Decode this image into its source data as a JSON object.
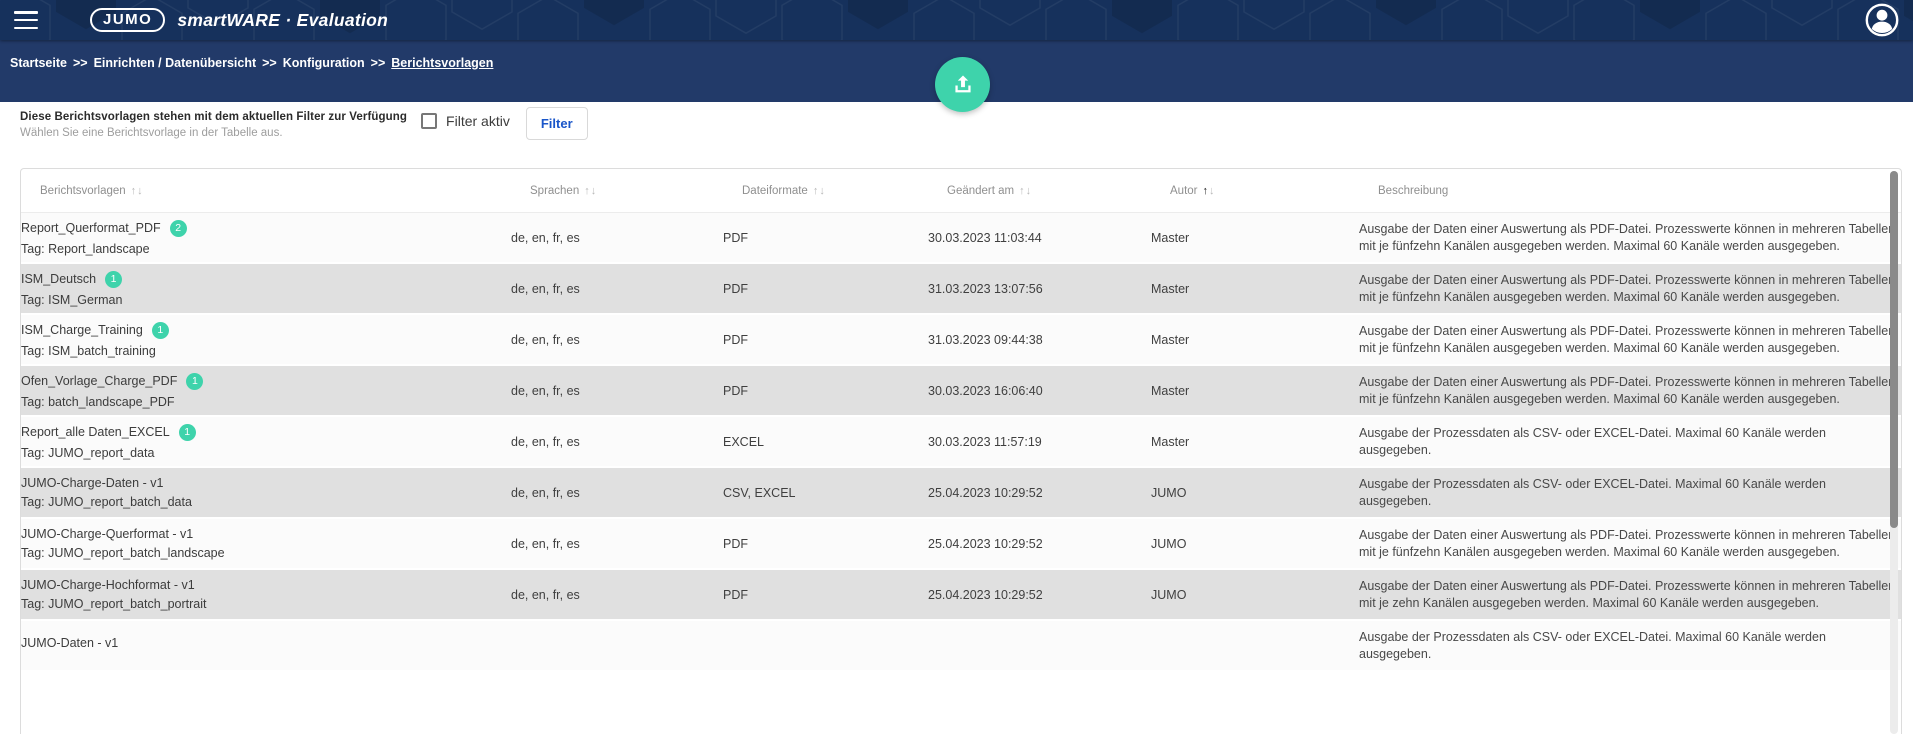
{
  "colors": {
    "header_bg": "#16315c",
    "breadcrumb_bg": "#223a69",
    "accent_teal": "#3ed3ab",
    "button_text_blue": "#1a56c9",
    "row_alt_gray": "#e0e0e0"
  },
  "icons": {
    "menu": "hamburger-icon",
    "avatar": "user-avatar-icon",
    "upload": "upload-icon",
    "sort_asc": "↑",
    "sort_desc": "↓"
  },
  "header": {
    "brand": "JUMO",
    "title": "smartWARE · Evaluation"
  },
  "breadcrumb": {
    "separator": ">>",
    "items": [
      "Startseite",
      "Einrichten / Datenübersicht",
      "Konfiguration",
      "Berichtsvorlagen"
    ]
  },
  "filter": {
    "title": "Diese Berichtsvorlagen stehen mit dem aktuellen Filter zur Verfügung",
    "subtitle": "Wählen Sie eine Berichtsvorlage in der Tabelle aus.",
    "checkbox_label": "Filter aktiv",
    "checked": false,
    "button_label": "Filter"
  },
  "table": {
    "columns": [
      {
        "label": "Berichtsvorlagen",
        "sortable": true,
        "active": ""
      },
      {
        "label": "Sprachen",
        "sortable": true,
        "active": ""
      },
      {
        "label": "Dateiformate",
        "sortable": true,
        "active": ""
      },
      {
        "label": "Geändert am",
        "sortable": true,
        "active": ""
      },
      {
        "label": "Autor",
        "sortable": true,
        "active": "asc"
      },
      {
        "label": "Beschreibung",
        "sortable": false,
        "active": ""
      }
    ],
    "rows": [
      {
        "name": "Report_Querformat_PDF",
        "badge": "2",
        "tag": "Tag: Report_landscape",
        "sprachen": "de, en, fr, es",
        "dateiformate": "PDF",
        "geaendert": "30.03.2023 11:03:44",
        "autor": "Master",
        "beschreibung": "Ausgabe der Daten einer Auswertung als PDF-Datei. Prozesswerte können in mehreren Tabellen mit je fünfzehn Kanälen ausgegeben werden. Maximal 60 Kanäle werden ausgegeben."
      },
      {
        "name": "ISM_Deutsch",
        "badge": "1",
        "tag": "Tag: ISM_German",
        "sprachen": "de, en, fr, es",
        "dateiformate": "PDF",
        "geaendert": "31.03.2023 13:07:56",
        "autor": "Master",
        "beschreibung": "Ausgabe der Daten einer Auswertung als PDF-Datei. Prozesswerte können in mehreren Tabellen mit je fünfzehn Kanälen ausgegeben werden. Maximal 60 Kanäle werden ausgegeben."
      },
      {
        "name": "ISM_Charge_Training",
        "badge": "1",
        "tag": "Tag: ISM_batch_training",
        "sprachen": "de, en, fr, es",
        "dateiformate": "PDF",
        "geaendert": "31.03.2023 09:44:38",
        "autor": "Master",
        "beschreibung": "Ausgabe der Daten einer Auswertung als PDF-Datei. Prozesswerte können in mehreren Tabellen mit je fünfzehn Kanälen ausgegeben werden. Maximal 60 Kanäle werden ausgegeben."
      },
      {
        "name": "Ofen_Vorlage_Charge_PDF",
        "badge": "1",
        "tag": "Tag: batch_landscape_PDF",
        "sprachen": "de, en, fr, es",
        "dateiformate": "PDF",
        "geaendert": "30.03.2023 16:06:40",
        "autor": "Master",
        "beschreibung": "Ausgabe der Daten einer Auswertung als PDF-Datei. Prozesswerte können in mehreren Tabellen mit je fünfzehn Kanälen ausgegeben werden. Maximal 60 Kanäle werden ausgegeben."
      },
      {
        "name": "Report_alle Daten_EXCEL",
        "badge": "1",
        "tag": "Tag: JUMO_report_data",
        "sprachen": "de, en, fr, es",
        "dateiformate": "EXCEL",
        "geaendert": "30.03.2023 11:57:19",
        "autor": "Master",
        "beschreibung": "Ausgabe der Prozessdaten als CSV- oder EXCEL-Datei. Maximal 60 Kanäle werden ausgegeben."
      },
      {
        "name": "JUMO-Charge-Daten - v1",
        "badge": "",
        "tag": "Tag: JUMO_report_batch_data",
        "sprachen": "de, en, fr, es",
        "dateiformate": "CSV, EXCEL",
        "geaendert": "25.04.2023 10:29:52",
        "autor": "JUMO",
        "beschreibung": "Ausgabe der Prozessdaten als CSV- oder EXCEL-Datei. Maximal 60 Kanäle werden ausgegeben."
      },
      {
        "name": "JUMO-Charge-Querformat - v1",
        "badge": "",
        "tag": "Tag: JUMO_report_batch_landscape",
        "sprachen": "de, en, fr, es",
        "dateiformate": "PDF",
        "geaendert": "25.04.2023 10:29:52",
        "autor": "JUMO",
        "beschreibung": "Ausgabe der Daten einer Auswertung als PDF-Datei. Prozesswerte können in mehreren Tabellen mit je fünfzehn Kanälen ausgegeben werden. Maximal 60 Kanäle werden ausgegeben."
      },
      {
        "name": "JUMO-Charge-Hochformat - v1",
        "badge": "",
        "tag": "Tag: JUMO_report_batch_portrait",
        "sprachen": "de, en, fr, es",
        "dateiformate": "PDF",
        "geaendert": "25.04.2023 10:29:52",
        "autor": "JUMO",
        "beschreibung": "Ausgabe der Daten einer Auswertung als PDF-Datei. Prozesswerte können in mehreren Tabellen mit je zehn Kanälen ausgegeben werden. Maximal 60 Kanäle werden ausgegeben."
      },
      {
        "name": "JUMO-Daten - v1",
        "badge": "",
        "tag": "",
        "sprachen": "",
        "dateiformate": "",
        "geaendert": "",
        "autor": "",
        "beschreibung": "Ausgabe der Prozessdaten als CSV- oder EXCEL-Datei. Maximal 60 Kanäle werden ausgegeben."
      }
    ]
  }
}
